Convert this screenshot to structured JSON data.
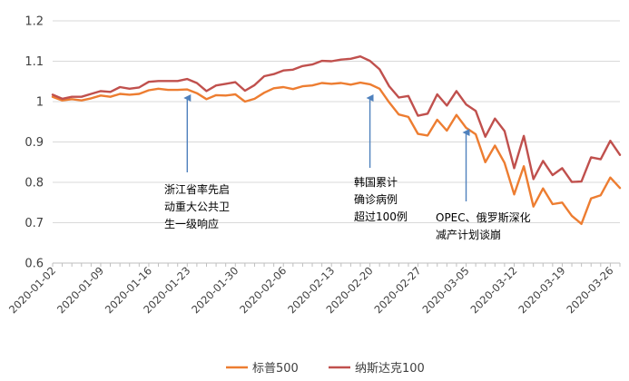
{
  "chart_data": {
    "type": "line",
    "title": "",
    "xlabel": "",
    "ylabel": "",
    "ylim": [
      0.6,
      1.2
    ],
    "yticks": [
      "0.6",
      "0.7",
      "0.8",
      "0.9",
      "1",
      "1.1",
      "1.2"
    ],
    "x_tick_labels": [
      "2020-01-02",
      "2020-01-09",
      "2020-01-16",
      "2020-01-23",
      "2020-01-30",
      "2020-02-06",
      "2020-02-13",
      "2020-02-20",
      "2020-02-27",
      "2020-03-05",
      "2020-03-12",
      "2020-03-19",
      "2020-03-26"
    ],
    "grid": "horizontal",
    "legend_position": "bottom",
    "colors": {
      "sp500": "#ED7D31",
      "nasdaq": "#C0504D",
      "arrow": "#4F81BD",
      "grid": "#D9D9D9",
      "axis": "#BFBFBF"
    },
    "dates": [
      "2020-01-02",
      "2020-01-03",
      "2020-01-06",
      "2020-01-07",
      "2020-01-08",
      "2020-01-09",
      "2020-01-10",
      "2020-01-13",
      "2020-01-14",
      "2020-01-15",
      "2020-01-16",
      "2020-01-17",
      "2020-01-21",
      "2020-01-22",
      "2020-01-23",
      "2020-01-24",
      "2020-01-27",
      "2020-01-28",
      "2020-01-29",
      "2020-01-30",
      "2020-01-31",
      "2020-02-03",
      "2020-02-04",
      "2020-02-05",
      "2020-02-06",
      "2020-02-07",
      "2020-02-10",
      "2020-02-11",
      "2020-02-12",
      "2020-02-13",
      "2020-02-14",
      "2020-02-18",
      "2020-02-19",
      "2020-02-20",
      "2020-02-21",
      "2020-02-24",
      "2020-02-25",
      "2020-02-26",
      "2020-02-27",
      "2020-02-28",
      "2020-03-02",
      "2020-03-03",
      "2020-03-04",
      "2020-03-05",
      "2020-03-06",
      "2020-03-09",
      "2020-03-10",
      "2020-03-11",
      "2020-03-12",
      "2020-03-13",
      "2020-03-16",
      "2020-03-17",
      "2020-03-18",
      "2020-03-19",
      "2020-03-20",
      "2020-03-23",
      "2020-03-24",
      "2020-03-25",
      "2020-03-26",
      "2020-03-27"
    ],
    "series": [
      {
        "name": "标普500",
        "key": "sp500",
        "values": [
          1.012,
          1.003,
          1.006,
          1.003,
          1.008,
          1.015,
          1.012,
          1.019,
          1.017,
          1.019,
          1.028,
          1.032,
          1.029,
          1.029,
          1.03,
          1.021,
          1.006,
          1.016,
          1.015,
          1.018,
          1.0,
          1.007,
          1.022,
          1.033,
          1.036,
          1.031,
          1.038,
          1.04,
          1.046,
          1.044,
          1.046,
          1.042,
          1.047,
          1.043,
          1.032,
          0.998,
          0.968,
          0.962,
          0.92,
          0.916,
          0.955,
          0.928,
          0.967,
          0.935,
          0.919,
          0.85,
          0.891,
          0.848,
          0.77,
          0.84,
          0.74,
          0.785,
          0.746,
          0.75,
          0.717,
          0.697,
          0.76,
          0.768,
          0.812,
          0.786
        ]
      },
      {
        "name": "纳斯达克100",
        "key": "nasdaq",
        "values": [
          1.017,
          1.007,
          1.012,
          1.012,
          1.019,
          1.026,
          1.024,
          1.036,
          1.032,
          1.035,
          1.049,
          1.051,
          1.051,
          1.051,
          1.056,
          1.046,
          1.026,
          1.04,
          1.044,
          1.048,
          1.027,
          1.041,
          1.063,
          1.068,
          1.077,
          1.079,
          1.088,
          1.092,
          1.101,
          1.1,
          1.104,
          1.106,
          1.112,
          1.101,
          1.08,
          1.038,
          1.01,
          1.014,
          0.965,
          0.97,
          1.018,
          0.99,
          1.026,
          0.993,
          0.977,
          0.913,
          0.958,
          0.927,
          0.835,
          0.915,
          0.808,
          0.853,
          0.818,
          0.835,
          0.801,
          0.802,
          0.862,
          0.857,
          0.903,
          0.868
        ]
      }
    ],
    "annotations": [
      {
        "date": "2020-01-23",
        "lines": [
          "浙江省率先启",
          "动重大公共卫",
          "生一级响应"
        ]
      },
      {
        "date": "2020-02-20",
        "lines": [
          "韩国累计",
          "确诊病例",
          "超过100例"
        ]
      },
      {
        "date": "2020-03-05",
        "lines": [
          "OPEC、俄罗斯深化",
          "减产计划谈崩"
        ]
      }
    ]
  }
}
